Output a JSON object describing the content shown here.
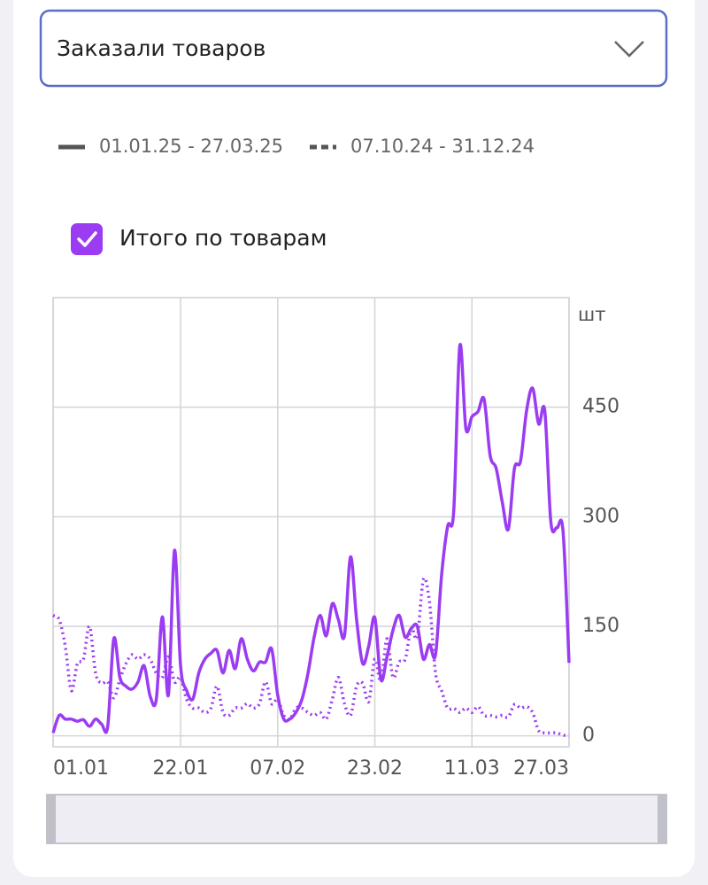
{
  "dropdown": {
    "label": "Заказали товаров"
  },
  "checkbox": {
    "label": "Итого по товарам",
    "checked": true
  },
  "chart_data": {
    "type": "line",
    "y_unit": "шт",
    "categories": [
      "01.01",
      "02.01",
      "03.01",
      "04.01",
      "05.01",
      "06.01",
      "07.01",
      "08.01",
      "09.01",
      "10.01",
      "11.01",
      "12.01",
      "13.01",
      "14.01",
      "15.01",
      "16.01",
      "17.01",
      "18.01",
      "19.01",
      "20.01",
      "21.01",
      "22.01",
      "23.01",
      "24.01",
      "25.01",
      "26.01",
      "27.01",
      "28.01",
      "29.01",
      "30.01",
      "31.01",
      "01.02",
      "02.02",
      "03.02",
      "04.02",
      "05.02",
      "06.02",
      "07.02",
      "08.02",
      "09.02",
      "10.02",
      "11.02",
      "12.02",
      "13.02",
      "14.02",
      "15.02",
      "16.02",
      "17.02",
      "18.02",
      "19.02",
      "20.02",
      "21.02",
      "22.02",
      "23.02",
      "24.02",
      "25.02",
      "26.02",
      "27.02",
      "28.02",
      "01.03",
      "02.03",
      "03.03",
      "04.03",
      "05.03",
      "06.03",
      "07.03",
      "08.03",
      "09.03",
      "10.03",
      "11.03",
      "12.03",
      "13.03",
      "14.03",
      "15.03",
      "16.03",
      "17.03",
      "18.03",
      "19.03",
      "20.03",
      "21.03",
      "22.03",
      "23.03",
      "24.03",
      "25.03",
      "26.03",
      "27.03"
    ],
    "xticks": [
      "01.01",
      "22.01",
      "07.02",
      "23.02",
      "11.03",
      "27.03"
    ],
    "series": [
      {
        "name": "01.01.25 - 27.03.25",
        "color": "#9b3cf2",
        "style": "solid",
        "values": [
          4,
          28,
          23,
          23,
          20,
          22,
          13,
          23,
          16,
          13,
          133,
          80,
          68,
          64,
          74,
          96,
          54,
          50,
          163,
          56,
          254,
          96,
          62,
          50,
          86,
          105,
          113,
          117,
          86,
          117,
          92,
          133,
          105,
          89,
          101,
          101,
          119,
          56,
          23,
          23,
          32,
          50,
          86,
          135,
          165,
          137,
          181,
          159,
          137,
          245,
          159,
          99,
          123,
          162,
          77,
          108,
          145,
          165,
          135,
          147,
          150,
          105,
          125,
          111,
          220,
          287,
          308,
          534,
          421,
          437,
          444,
          461,
          384,
          366,
          320,
          283,
          366,
          376,
          445,
          476,
          427,
          445,
          293,
          285,
          281,
          100
        ]
      },
      {
        "name": "07.10.24 - 31.12.24",
        "color": "#9b3cf2",
        "style": "dotted",
        "values": [
          165,
          159,
          123,
          62,
          99,
          105,
          150,
          86,
          72,
          74,
          52,
          77,
          99,
          111,
          105,
          111,
          105,
          86,
          80,
          108,
          74,
          80,
          50,
          38,
          38,
          32,
          38,
          68,
          32,
          28,
          38,
          38,
          44,
          38,
          44,
          74,
          44,
          50,
          28,
          23,
          38,
          38,
          32,
          28,
          32,
          23,
          50,
          80,
          44,
          28,
          68,
          72,
          47,
          105,
          74,
          133,
          80,
          101,
          105,
          147,
          135,
          214,
          184,
          86,
          62,
          38,
          38,
          32,
          38,
          32,
          40,
          28,
          28,
          26,
          28,
          26,
          43,
          38,
          40,
          32,
          7,
          4,
          4,
          4,
          1,
          0
        ]
      }
    ],
    "ylim": [
      -15,
      600
    ],
    "yticks": [
      0,
      150,
      300,
      450
    ],
    "grid": true
  }
}
